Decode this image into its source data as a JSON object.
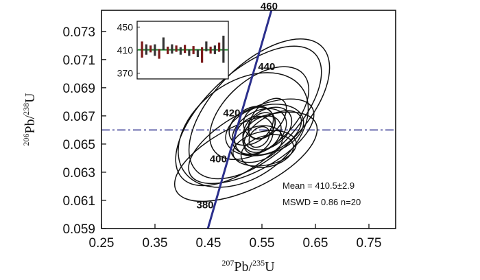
{
  "chart_data": {
    "type": "scatter",
    "subtype": "concordia-diagram",
    "title": "",
    "xlabel": {
      "sup1": "207",
      "mid1": "Pb/",
      "sup2": "235",
      "mid2": "U"
    },
    "ylabel": {
      "sup1": "206",
      "mid1": "Pb/",
      "sup2": "238",
      "mid2": "U"
    },
    "xlim": [
      0.25,
      0.8
    ],
    "ylim": [
      0.059,
      0.0745
    ],
    "x_ticks": [
      "0.25",
      "0.35",
      "0.45",
      "0.55",
      "0.65",
      "0.75"
    ],
    "x_tick_values": [
      0.25,
      0.35,
      0.45,
      0.55,
      0.65,
      0.75
    ],
    "y_ticks": [
      "0.059",
      "0.061",
      "0.063",
      "0.065",
      "0.067",
      "0.069",
      "0.071",
      "0.073"
    ],
    "y_tick_values": [
      0.059,
      0.061,
      0.063,
      0.065,
      0.067,
      0.069,
      0.071,
      0.073
    ],
    "grid": false,
    "concordia": {
      "color": "#2b2f8c",
      "points": [
        {
          "age": "380",
          "x": 0.4622,
          "y": 0.06074
        },
        {
          "age": "400",
          "x": 0.487,
          "y": 0.064
        },
        {
          "age": "420",
          "x": 0.5121,
          "y": 0.06726
        },
        {
          "age": "440",
          "x": 0.5376,
          "y": 0.07054
        },
        {
          "age": "460",
          "x": 0.5634,
          "y": 0.07393
        }
      ]
    },
    "mean_line": {
      "y": 0.066,
      "color": "#2b2f8c",
      "style": "dash-dot"
    },
    "ellipses": [
      {
        "x": 0.545,
        "y": 0.0675,
        "rx": 0.165,
        "ry": 0.0032,
        "angle": 0.78
      },
      {
        "x": 0.525,
        "y": 0.067,
        "rx": 0.17,
        "ry": 0.0031,
        "angle": 0.75
      },
      {
        "x": 0.515,
        "y": 0.066,
        "rx": 0.135,
        "ry": 0.0034,
        "angle": 0.62
      },
      {
        "x": 0.545,
        "y": 0.0672,
        "rx": 0.11,
        "ry": 0.0024,
        "angle": 0.72
      },
      {
        "x": 0.52,
        "y": 0.0641,
        "rx": 0.145,
        "ry": 0.0023,
        "angle": 0.45
      },
      {
        "x": 0.53,
        "y": 0.0652,
        "rx": 0.13,
        "ry": 0.0021,
        "angle": 0.5
      },
      {
        "x": 0.555,
        "y": 0.066,
        "rx": 0.075,
        "ry": 0.0017,
        "angle": 0.3
      },
      {
        "x": 0.545,
        "y": 0.0659,
        "rx": 0.055,
        "ry": 0.0014,
        "angle": 0.55
      },
      {
        "x": 0.56,
        "y": 0.0661,
        "rx": 0.05,
        "ry": 0.0013,
        "angle": 0.6
      },
      {
        "x": 0.55,
        "y": 0.0657,
        "rx": 0.04,
        "ry": 0.0011,
        "angle": 0.7
      },
      {
        "x": 0.54,
        "y": 0.065,
        "rx": 0.05,
        "ry": 0.0012,
        "angle": 0.35
      },
      {
        "x": 0.535,
        "y": 0.0656,
        "rx": 0.04,
        "ry": 0.0012,
        "angle": 0.8
      },
      {
        "x": 0.545,
        "y": 0.0665,
        "rx": 0.03,
        "ry": 0.0011,
        "angle": 0.75
      },
      {
        "x": 0.55,
        "y": 0.0663,
        "rx": 0.028,
        "ry": 0.0008,
        "angle": 0.75
      },
      {
        "x": 0.56,
        "y": 0.0668,
        "rx": 0.045,
        "ry": 0.001,
        "angle": 0.85
      },
      {
        "x": 0.555,
        "y": 0.0647,
        "rx": 0.06,
        "ry": 0.0012,
        "angle": 0.2
      },
      {
        "x": 0.56,
        "y": 0.0645,
        "rx": 0.05,
        "ry": 0.0011,
        "angle": 0.25
      },
      {
        "x": 0.545,
        "y": 0.0655,
        "rx": 0.022,
        "ry": 0.0006,
        "angle": 0.8
      },
      {
        "x": 0.53,
        "y": 0.0663,
        "rx": 0.045,
        "ry": 0.0012,
        "angle": 0.6
      },
      {
        "x": 0.57,
        "y": 0.0658,
        "rx": 0.06,
        "ry": 0.0012,
        "angle": 0.55
      }
    ],
    "inset": {
      "type": "bar",
      "ylim": [
        360,
        460
      ],
      "y_ticks": [
        "450",
        "410",
        "370"
      ],
      "y_tick_values": [
        450,
        410,
        370
      ],
      "mean": 410.5,
      "mean_color": "#1f8a2e",
      "bar_colors": [
        "#7a1a1a",
        "#333333"
      ],
      "bars": [
        {
          "lo": 397,
          "hi": 425
        },
        {
          "lo": 402,
          "hi": 420
        },
        {
          "lo": 406,
          "hi": 418
        },
        {
          "lo": 400,
          "hi": 420
        },
        {
          "lo": 395,
          "hi": 412
        },
        {
          "lo": 410,
          "hi": 432
        },
        {
          "lo": 403,
          "hi": 416
        },
        {
          "lo": 404,
          "hi": 420
        },
        {
          "lo": 407,
          "hi": 418
        },
        {
          "lo": 402,
          "hi": 415
        },
        {
          "lo": 405,
          "hi": 419
        },
        {
          "lo": 400,
          "hi": 411
        },
        {
          "lo": 403,
          "hi": 417
        },
        {
          "lo": 398,
          "hi": 411
        },
        {
          "lo": 388,
          "hi": 415
        },
        {
          "lo": 408,
          "hi": 425
        },
        {
          "lo": 404,
          "hi": 416
        },
        {
          "lo": 403,
          "hi": 418
        },
        {
          "lo": 407,
          "hi": 423
        },
        {
          "lo": 388,
          "hi": 435
        }
      ]
    },
    "annotations": {
      "mean_text": "Mean = 410.5±2.9",
      "mswd_text": "MSWD = 0.86  n=20"
    }
  }
}
